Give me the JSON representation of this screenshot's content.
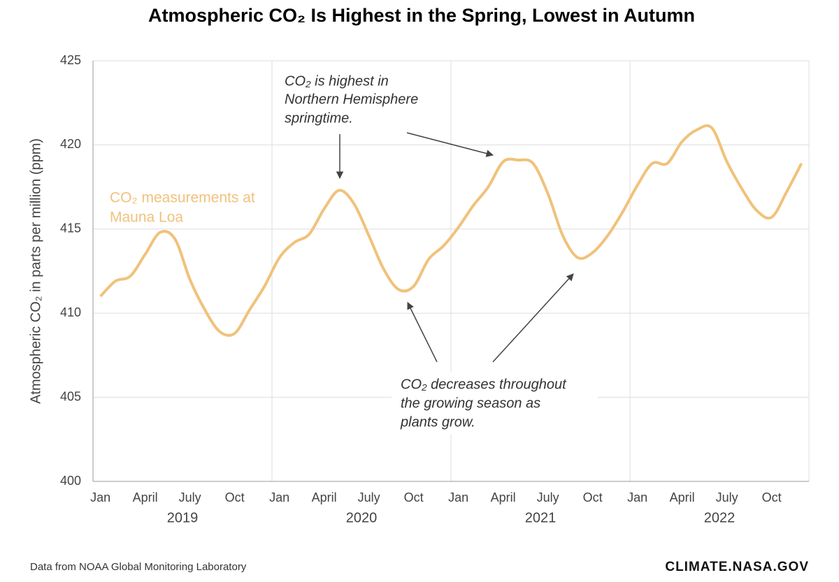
{
  "chart_data": {
    "type": "line",
    "title": "Atmospheric CO₂ Is Highest in the Spring, Lowest in Autumn",
    "y_label": "Atmospheric CO₂ in parts per million (ppm)",
    "categories": [
      "Jan",
      null,
      null,
      "April",
      null,
      null,
      "July",
      null,
      null,
      "Oct",
      null,
      null,
      "Jan",
      null,
      null,
      "April",
      null,
      null,
      "July",
      null,
      null,
      "Oct",
      null,
      null,
      "Jan",
      null,
      null,
      "April",
      null,
      null,
      "July",
      null,
      null,
      "Oct",
      null,
      null,
      "Jan",
      null,
      null,
      "April",
      null,
      null,
      "July",
      null,
      null,
      "Oct",
      null,
      null
    ],
    "years": [
      "2019",
      "2020",
      "2021",
      "2022"
    ],
    "series": [
      {
        "name": "CO₂ measurements at Mauna Loa",
        "name_lines": [
          "CO₂ measurements at",
          "Mauna Loa"
        ],
        "color": "#f0c27b",
        "values": [
          411.0,
          411.9,
          412.2,
          413.5,
          414.8,
          414.4,
          412.0,
          410.2,
          408.9,
          408.8,
          410.2,
          411.6,
          413.3,
          414.2,
          414.7,
          416.2,
          417.3,
          416.5,
          414.6,
          412.6,
          411.4,
          411.6,
          413.2,
          414.0,
          415.1,
          416.4,
          417.5,
          419.0,
          419.1,
          418.9,
          417.1,
          414.6,
          413.3,
          413.6,
          414.6,
          416.0,
          417.6,
          418.9,
          418.9,
          420.2,
          420.9,
          421.0,
          419.0,
          417.4,
          416.1,
          415.7,
          417.2,
          418.9
        ]
      }
    ],
    "ylim": [
      400,
      425
    ],
    "yticks": [
      400,
      405,
      410,
      415,
      420,
      425
    ],
    "grid": true,
    "annotations": [
      {
        "lines": [
          "CO₂ is highest in",
          "Northern Hemisphere",
          "springtime."
        ]
      },
      {
        "lines": [
          "CO₂  decreases throughout",
          "the growing season as",
          "plants grow."
        ]
      }
    ],
    "source": "Data from NOAA Global Monitoring Laboratory",
    "credit": "CLIMATE.NASA.GOV"
  }
}
